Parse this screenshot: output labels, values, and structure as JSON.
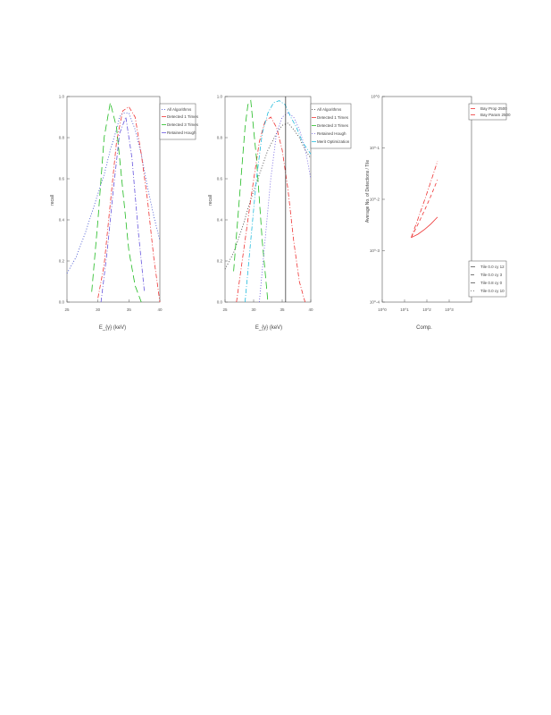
{
  "charts": [
    {
      "type": "line",
      "xlabel": "E_{γ} (keV)",
      "ylabel": "recall",
      "xlim": [
        25,
        40
      ],
      "ylim": [
        0.0,
        1.0
      ],
      "xticks": [
        25,
        30,
        35,
        40
      ],
      "yticks": [
        0.0,
        0.2,
        0.4,
        0.6,
        0.8,
        1.0
      ],
      "legend": {
        "placement": "top-right",
        "entries": [
          "All Algorithms",
          "Detected 1 Times",
          "Detected 3 Times",
          "Retained Hough"
        ]
      },
      "series": [
        {
          "color": "#3344cc",
          "style": "dot",
          "x": [
            25,
            26.5,
            28,
            29.5,
            31,
            32,
            33,
            33.5,
            34,
            35,
            36,
            37,
            38,
            39,
            40
          ],
          "y": [
            0.14,
            0.22,
            0.34,
            0.48,
            0.62,
            0.74,
            0.84,
            0.9,
            0.92,
            0.92,
            0.84,
            0.72,
            0.56,
            0.42,
            0.3
          ]
        },
        {
          "color": "#ee3333",
          "style": "dashdot",
          "x": [
            30,
            31,
            32,
            33,
            34,
            35,
            36,
            37,
            38,
            39,
            40
          ],
          "y": [
            0.02,
            0.18,
            0.48,
            0.78,
            0.93,
            0.95,
            0.9,
            0.72,
            0.5,
            0.22,
            0.0
          ]
        },
        {
          "color": "#22bb22",
          "style": "longdash",
          "x": [
            29,
            30,
            31,
            32,
            33,
            34,
            35,
            36,
            37
          ],
          "y": [
            0.05,
            0.4,
            0.8,
            0.97,
            0.85,
            0.55,
            0.25,
            0.08,
            0.0
          ]
        },
        {
          "color": "#6655dd",
          "style": "dashdot",
          "x": [
            30.5,
            31.5,
            32.5,
            33.5,
            34.5,
            35.5,
            36.5,
            37.5
          ],
          "y": [
            0.0,
            0.25,
            0.55,
            0.82,
            0.9,
            0.7,
            0.35,
            0.05
          ]
        }
      ]
    },
    {
      "type": "line",
      "xlabel": "E_{γ} (keV)",
      "ylabel": "recall",
      "xlim": [
        25,
        40
      ],
      "ylim": [
        0.0,
        1.0
      ],
      "xticks": [
        25,
        30,
        35,
        40
      ],
      "yticks": [
        0.0,
        0.2,
        0.4,
        0.6,
        0.8,
        1.0
      ],
      "legend": {
        "placement": "top-right",
        "entries": [
          "All Algorithms",
          "Detected 1 Times",
          "Detected 3 Times",
          "Retained Hough",
          "Merit Optimization"
        ]
      },
      "series": [
        {
          "color": "#333333",
          "style": "dot",
          "x": [
            25,
            26.5,
            28,
            29.5,
            31,
            32.5,
            34,
            35,
            36,
            37,
            38,
            39,
            40
          ],
          "y": [
            0.16,
            0.24,
            0.36,
            0.5,
            0.62,
            0.74,
            0.82,
            0.86,
            0.87,
            0.84,
            0.8,
            0.74,
            0.7
          ]
        },
        {
          "color": "#ee3333",
          "style": "dashdot",
          "x": [
            27,
            28,
            29.5,
            31,
            32,
            33,
            34,
            35,
            36,
            37,
            38,
            39
          ],
          "y": [
            0.0,
            0.2,
            0.5,
            0.78,
            0.88,
            0.9,
            0.85,
            0.74,
            0.55,
            0.3,
            0.1,
            0.0
          ]
        },
        {
          "color": "#22bb22",
          "style": "longdash",
          "x": [
            26.5,
            27.5,
            28.5,
            29,
            29.5,
            30.5,
            31.5,
            32.5
          ],
          "y": [
            0.15,
            0.5,
            0.85,
            0.96,
            0.98,
            0.7,
            0.3,
            0.0
          ]
        },
        {
          "color": "#6655dd",
          "style": "dot",
          "x": [
            31,
            32,
            33,
            34,
            35,
            36,
            37,
            38,
            39,
            40
          ],
          "y": [
            0.0,
            0.3,
            0.6,
            0.82,
            0.9,
            0.92,
            0.9,
            0.84,
            0.75,
            0.6
          ]
        },
        {
          "color": "#22bbdd",
          "style": "dashdot",
          "x": [
            28.5,
            29.5,
            30.5,
            31.5,
            32.5,
            33.5,
            34.5,
            35.5,
            36.5,
            37.5,
            38.5,
            40
          ],
          "y": [
            0.0,
            0.3,
            0.6,
            0.82,
            0.92,
            0.97,
            0.98,
            0.96,
            0.9,
            0.85,
            0.78,
            0.72
          ]
        }
      ],
      "vline_x": 35.6
    },
    {
      "type": "line",
      "xlabel": "Comp.",
      "ylabel": "Average No. of Detections / Tile",
      "xscale": "log",
      "yscale": "log",
      "xlim": [
        1,
        10000
      ],
      "ylim": [
        0.0001,
        1
      ],
      "xticks": [
        1,
        10,
        100,
        1000
      ],
      "xtick_labels": [
        "10^0",
        "10^1",
        "10^2",
        "10^3"
      ],
      "yticks": [
        0.0001,
        0.001,
        0.01,
        0.1,
        1
      ],
      "ytick_labels": [
        "10^-4",
        "10^-3",
        "10^-2",
        "10^-1",
        "10^0"
      ],
      "legend_top": {
        "placement": "top-left",
        "entries": [
          "Bay Prop 2500",
          "Bay Param 2500"
        ]
      },
      "legend_bottom": {
        "placement": "bottom-left",
        "entries": [
          "Tile 0.0 cy 12",
          "Tile 0.0 cy 3",
          "Tile 0.8 cy 0",
          "Tile 0.0 cy 10"
        ]
      },
      "series": [
        {
          "color": "#ee3333",
          "style": "solid",
          "x": [
            20,
            40,
            80,
            150,
            300
          ],
          "y": [
            0.0018,
            0.0021,
            0.0026,
            0.0033,
            0.0045
          ]
        },
        {
          "color": "#ee3333",
          "style": "dash",
          "x": [
            20,
            40,
            80,
            150,
            300
          ],
          "y": [
            0.0018,
            0.0033,
            0.0062,
            0.0115,
            0.024
          ]
        },
        {
          "color": "#ee3333",
          "style": "dashdot",
          "x": [
            20,
            40,
            80,
            150,
            300
          ],
          "y": [
            0.0018,
            0.0042,
            0.0098,
            0.022,
            0.055
          ]
        }
      ]
    }
  ]
}
